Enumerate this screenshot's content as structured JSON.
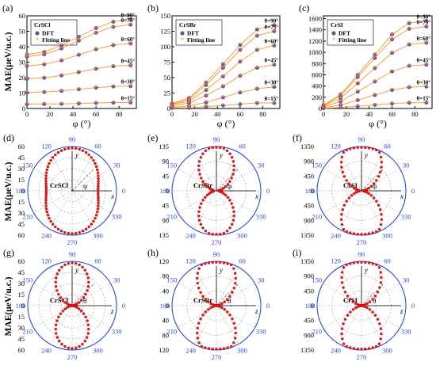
{
  "figure": {
    "cartesian_ylabel": "MAE(μeV/u.c.)",
    "polar_ylabel": "MAE(μeV/u.c.)",
    "xlabel": "φ (°)",
    "markers": {
      "dft": "DFT",
      "fit": "Fitting line"
    },
    "polar_axis_labels": {
      "y": "y",
      "x": "x",
      "z": "z"
    },
    "polar_angle_labels": [
      "0",
      "30",
      "60",
      "90",
      "120",
      "150",
      "180",
      "210",
      "240",
      "270",
      "300",
      "330"
    ],
    "colors": {
      "dft_fill": "#3b5bd6",
      "dft_edge": "#c0392b",
      "fit": "#f0a040",
      "polar_point": "#e21b1b",
      "polar_circle": "#2f4ad9",
      "grid": "#9a9a9a"
    }
  },
  "chart_data": [
    {
      "panel": "(a)",
      "type": "scatter",
      "material": "CrSCl",
      "x": [
        0,
        15,
        30,
        45,
        60,
        75,
        90
      ],
      "xlim": [
        0,
        95
      ],
      "xticks": [
        0,
        20,
        40,
        60,
        80
      ],
      "ylim": [
        0,
        60
      ],
      "yticks": [
        0,
        10,
        20,
        30,
        40,
        50,
        60
      ],
      "legend": [
        "DFT",
        "Fitting line"
      ],
      "series": [
        {
          "name": "θ=90°",
          "values": [
            35.0,
            36.6,
            40.9,
            46.5,
            52.1,
            56.2,
            57.8
          ]
        },
        {
          "name": "θ=75°",
          "values": [
            33.6,
            35.1,
            38.9,
            44.0,
            49.1,
            52.9,
            54.3
          ]
        },
        {
          "name": "θ=60°",
          "values": [
            27.6,
            28.6,
            31.2,
            34.8,
            38.4,
            41.1,
            42.1
          ]
        },
        {
          "name": "θ=45°",
          "values": [
            19.2,
            19.9,
            21.4,
            23.6,
            25.8,
            27.4,
            28.0
          ]
        },
        {
          "name": "θ=30°",
          "values": [
            10.4,
            10.7,
            11.4,
            12.5,
            13.5,
            14.3,
            14.5
          ]
        },
        {
          "name": "θ=15°",
          "values": [
            2.8,
            2.9,
            3.0,
            3.3,
            3.6,
            3.8,
            3.9
          ]
        }
      ]
    },
    {
      "panel": "(b)",
      "type": "scatter",
      "material": "CrSBr",
      "x": [
        0,
        15,
        30,
        45,
        60,
        75,
        90
      ],
      "xlim": [
        0,
        95
      ],
      "xticks": [
        0,
        20,
        40,
        60,
        80
      ],
      "ylim": [
        0,
        150
      ],
      "yticks": [
        0,
        25,
        50,
        75,
        100,
        125,
        150
      ],
      "legend": [
        "DFT",
        "Fitting line"
      ],
      "series": [
        {
          "name": "θ=90°",
          "values": [
            8,
            17,
            42,
            72,
            103,
            128,
            135
          ]
        },
        {
          "name": "θ=75°",
          "values": [
            7,
            15,
            38,
            66,
            95,
            118,
            125
          ]
        },
        {
          "name": "θ=60°",
          "values": [
            6,
            12,
            30,
            52,
            76,
            95,
            102
          ]
        },
        {
          "name": "θ=45°",
          "values": [
            4,
            9,
            21,
            36,
            53,
            66,
            71
          ]
        },
        {
          "name": "θ=30°",
          "values": [
            2,
            4,
            10,
            18,
            26,
            32,
            35
          ]
        },
        {
          "name": "θ=15°",
          "values": [
            1,
            1,
            3,
            5,
            7,
            9,
            9
          ]
        }
      ]
    },
    {
      "panel": "(c)",
      "type": "scatter",
      "material": "CrSI",
      "x": [
        0,
        15,
        30,
        45,
        60,
        75,
        90
      ],
      "xlim": [
        0,
        95
      ],
      "xticks": [
        0,
        20,
        40,
        60,
        80
      ],
      "ylim": [
        0,
        1650
      ],
      "yticks": [
        0,
        200,
        400,
        600,
        800,
        1000,
        1200,
        1400,
        1600
      ],
      "legend": [
        "DFT",
        "Fitting line"
      ],
      "series": [
        {
          "name": "θ=90°",
          "values": [
            60,
            250,
            600,
            960,
            1320,
            1520,
            1560
          ]
        },
        {
          "name": "θ=75°",
          "values": [
            55,
            230,
            560,
            900,
            1230,
            1420,
            1460
          ]
        },
        {
          "name": "θ=60°",
          "values": [
            45,
            185,
            450,
            720,
            990,
            1140,
            1170
          ]
        },
        {
          "name": "θ=45°",
          "values": [
            30,
            125,
            300,
            480,
            660,
            760,
            780
          ]
        },
        {
          "name": "θ=30°",
          "values": [
            15,
            60,
            150,
            240,
            330,
            380,
            390
          ]
        },
        {
          "name": "θ=15°",
          "values": [
            4,
            17,
            40,
            64,
            88,
            102,
            105
          ]
        }
      ]
    },
    {
      "panel": "(d)",
      "type": "scatter",
      "subtype": "polar",
      "material": "CrSCl",
      "axes": [
        "y",
        "x"
      ],
      "angle_symbol": "φ",
      "rmax": 60,
      "rticks": [
        0,
        15,
        30,
        45,
        60
      ],
      "rlabels": [
        "0",
        "15",
        "30",
        "45",
        "60"
      ],
      "a": 35,
      "b": 57.8
    },
    {
      "panel": "(e)",
      "type": "scatter",
      "subtype": "polar",
      "material": "CrSBr",
      "axes": [
        "y",
        "x"
      ],
      "angle_symbol": "φ",
      "rmax": 135,
      "rticks": [
        0,
        45,
        90,
        135
      ],
      "rlabels": [
        "0",
        "45",
        "90",
        "135"
      ],
      "a": 8,
      "b": 135
    },
    {
      "panel": "(f)",
      "type": "scatter",
      "subtype": "polar",
      "material": "CrSI",
      "axes": [
        "y",
        "x"
      ],
      "angle_symbol": "φ",
      "rmax": 1350,
      "rticks": [
        0,
        450,
        900,
        1350
      ],
      "rlabels": [
        "0",
        "450",
        "900",
        "1350"
      ],
      "a": 60,
      "b": 1560
    },
    {
      "panel": "(g)",
      "type": "scatter",
      "subtype": "polar",
      "material": "CrSCl",
      "axes": [
        "y",
        "z"
      ],
      "angle_symbol": "θ",
      "rmax": 60,
      "rticks": [
        0,
        15,
        30,
        45,
        60
      ],
      "rlabels": [
        "0",
        "15",
        "30",
        "45",
        "60"
      ],
      "a": 0,
      "b": 57.8
    },
    {
      "panel": "(h)",
      "type": "scatter",
      "subtype": "polar",
      "material": "CrSBr",
      "axes": [
        "y",
        "z"
      ],
      "angle_symbol": "θ",
      "rmax": 120,
      "rticks": [
        0,
        40,
        80,
        120
      ],
      "rlabels": [
        "0",
        "40",
        "80",
        "120"
      ],
      "a": 0,
      "b": 135
    },
    {
      "panel": "(i)",
      "type": "scatter",
      "subtype": "polar",
      "material": "CrSI",
      "axes": [
        "y",
        "z"
      ],
      "angle_symbol": "θ",
      "rmax": 1350,
      "rticks": [
        0,
        450,
        900,
        1350
      ],
      "rlabels": [
        "0",
        "450",
        "900",
        "1350"
      ],
      "a": 0,
      "b": 1560
    }
  ]
}
